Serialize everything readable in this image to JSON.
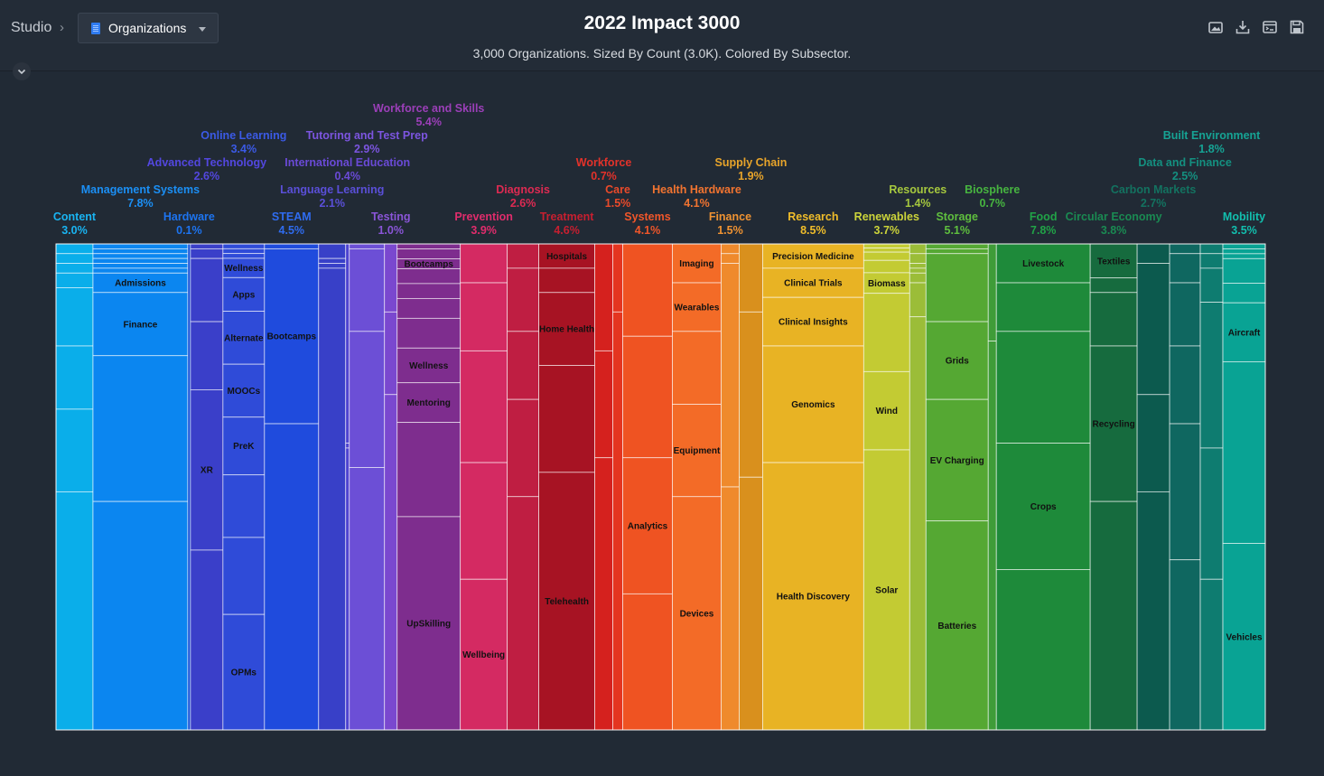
{
  "toolbar": {
    "breadcrumb": "Studio",
    "selector_label": "Organizations",
    "title": "2022 Impact 3000",
    "subtitle": "3,000 Organizations. Sized By Count (3.0K). Colored By Subsector.",
    "icons": [
      "image-export-icon",
      "download-icon",
      "embed-icon",
      "save-icon"
    ]
  },
  "chart_data": {
    "type": "treemap",
    "title": "2022 Impact 3000",
    "subtitle": "3,000 Organizations. Sized By Count (3.0K). Colored By Subsector.",
    "groups": [
      {
        "name": "Content",
        "pct": "3.0%",
        "value": 3.0,
        "color": "#0aaeea",
        "cells": [
          {
            "label": "",
            "value": 2
          },
          {
            "label": "",
            "value": 2
          },
          {
            "label": "",
            "value": 2
          },
          {
            "label": "",
            "value": 3
          },
          {
            "label": "",
            "value": 12
          },
          {
            "label": "",
            "value": 13
          },
          {
            "label": "",
            "value": 17
          },
          {
            "label": "",
            "value": 49
          }
        ]
      },
      {
        "name": "Management Systems",
        "pct": "7.8%",
        "value": 7.8,
        "color": "#0b86f0",
        "cells": [
          {
            "label": "",
            "value": 1
          },
          {
            "label": "",
            "value": 1
          },
          {
            "label": "",
            "value": 1
          },
          {
            "label": "",
            "value": 1
          },
          {
            "label": "",
            "value": 1
          },
          {
            "label": "",
            "value": 1
          },
          {
            "label": "Admissions",
            "value": 4
          },
          {
            "label": "Finance",
            "value": 13
          },
          {
            "label": "",
            "value": 30
          },
          {
            "label": "",
            "value": 47
          }
        ]
      },
      {
        "name": "Hardware",
        "pct": "0.1%",
        "value": 0.1,
        "color": "#1550d6",
        "cells": [
          {
            "label": "",
            "value": 1
          }
        ]
      },
      {
        "name": "Advanced Technology",
        "pct": "2.6%",
        "value": 2.6,
        "color": "#3a3fc9",
        "cells": [
          {
            "label": "",
            "value": 1
          },
          {
            "label": "",
            "value": 2
          },
          {
            "label": "",
            "value": 13
          },
          {
            "label": "",
            "value": 14
          },
          {
            "label": "XR",
            "value": 33
          },
          {
            "label": "",
            "value": 37
          }
        ]
      },
      {
        "name": "Online Learning",
        "pct": "3.4%",
        "value": 3.4,
        "color": "#2f4bd8",
        "cells": [
          {
            "label": "",
            "value": 1
          },
          {
            "label": "",
            "value": 1
          },
          {
            "label": "",
            "value": 1
          },
          {
            "label": "Wellness",
            "value": 4
          },
          {
            "label": "Apps",
            "value": 7
          },
          {
            "label": "Alternate",
            "value": 11
          },
          {
            "label": "MOOCs",
            "value": 11
          },
          {
            "label": "PreK",
            "value": 12
          },
          {
            "label": "",
            "value": 13
          },
          {
            "label": "",
            "value": 16
          },
          {
            "label": "OPMs",
            "value": 24
          }
        ]
      },
      {
        "name": "STEAM",
        "pct": "4.5%",
        "value": 4.5,
        "color": "#1f4bdd",
        "cells": [
          {
            "label": "",
            "value": 1
          },
          {
            "label": "Bootcamps",
            "value": 36
          },
          {
            "label": "",
            "value": 63
          }
        ]
      },
      {
        "name": "Language Learning",
        "pct": "2.1%",
        "value": 2.1,
        "color": "#3840c8",
        "cells": [
          {
            "label": "",
            "value": 3
          },
          {
            "label": "",
            "value": 1
          },
          {
            "label": "",
            "value": 1
          },
          {
            "label": "",
            "value": 95
          }
        ]
      },
      {
        "name": "International Education",
        "pct": "0.4%",
        "value": 0.4,
        "color": "#4d43d0",
        "cells": [
          {
            "label": "",
            "value": 41
          },
          {
            "label": "",
            "value": 1
          },
          {
            "label": "",
            "value": 58
          }
        ]
      },
      {
        "name": "Tutoring and Test Prep",
        "pct": "2.9%",
        "value": 2.9,
        "color": "#6c4fd6",
        "cells": [
          {
            "label": "",
            "value": 1
          },
          {
            "label": "",
            "value": 17
          },
          {
            "label": "",
            "value": 28
          },
          {
            "label": "",
            "value": 54
          }
        ]
      },
      {
        "name": "Testing",
        "pct": "1.0%",
        "value": 1.0,
        "color": "#7a48cf",
        "cells": [
          {
            "label": "",
            "value": 14
          },
          {
            "label": "",
            "value": 17
          },
          {
            "label": "",
            "value": 69
          }
        ]
      },
      {
        "name": "Workforce and Skills",
        "pct": "5.4%",
        "value": 5.4,
        "color": "#7e2d8e",
        "cells": [
          {
            "label": "",
            "value": 1
          },
          {
            "label": "",
            "value": 2
          },
          {
            "label": "Bootcamps",
            "value": 2
          },
          {
            "label": "",
            "value": 3
          },
          {
            "label": "",
            "value": 3
          },
          {
            "label": "",
            "value": 4
          },
          {
            "label": "",
            "value": 6
          },
          {
            "label": "Wellness",
            "value": 7
          },
          {
            "label": "Mentoring",
            "value": 8
          },
          {
            "label": "",
            "value": 19
          },
          {
            "label": "UpSkilling",
            "value": 43
          }
        ]
      },
      {
        "name": "Prevention",
        "pct": "3.9%",
        "value": 3.9,
        "color": "#d42a62",
        "cells": [
          {
            "label": "",
            "value": 8
          },
          {
            "label": "",
            "value": 14
          },
          {
            "label": "",
            "value": 23
          },
          {
            "label": "",
            "value": 24
          },
          {
            "label": "Wellbeing",
            "value": 31
          }
        ]
      },
      {
        "name": "Diagnosis",
        "pct": "2.6%",
        "value": 2.6,
        "color": "#bf1e42",
        "cells": [
          {
            "label": "",
            "value": 5
          },
          {
            "label": "",
            "value": 13
          },
          {
            "label": "",
            "value": 14
          },
          {
            "label": "",
            "value": 20
          },
          {
            "label": "",
            "value": 48
          }
        ]
      },
      {
        "name": "Treatment",
        "pct": "4.6%",
        "value": 4.6,
        "color": "#a71323",
        "cells": [
          {
            "label": "Hospitals",
            "value": 5
          },
          {
            "label": "",
            "value": 5
          },
          {
            "label": "Home Health",
            "value": 15
          },
          {
            "label": "",
            "value": 22
          },
          {
            "label": "Telehealth",
            "value": 53
          }
        ]
      },
      {
        "name": "Workforce",
        "pct": "0.7%",
        "value": 0.7,
        "color": "#d5211e",
        "cells": [
          {
            "label": "",
            "value": 22
          },
          {
            "label": "",
            "value": 22
          },
          {
            "label": "",
            "value": 56
          }
        ]
      },
      {
        "name": "Care",
        "pct": "1.5%",
        "value": 1.5,
        "color": "#e43520",
        "cells": [
          {
            "label": "",
            "value": 14
          },
          {
            "label": "",
            "value": 86
          }
        ]
      },
      {
        "name": "Systems",
        "pct": "4.1%",
        "value": 4.1,
        "color": "#ef5322",
        "cells": [
          {
            "label": "",
            "value": 19
          },
          {
            "label": "",
            "value": 25
          },
          {
            "label": "Analytics",
            "value": 28
          },
          {
            "label": "",
            "value": 28
          }
        ]
      },
      {
        "name": "Health Hardware",
        "pct": "4.1%",
        "value": 4.1,
        "color": "#f36b27",
        "cells": [
          {
            "label": "Imaging",
            "value": 8
          },
          {
            "label": "Wearables",
            "value": 10
          },
          {
            "label": "",
            "value": 15
          },
          {
            "label": "Equipment",
            "value": 19
          },
          {
            "label": "Devices",
            "value": 48
          }
        ]
      },
      {
        "name": "Finance",
        "pct": "1.5%",
        "value": 1.5,
        "color": "#ef8a2c",
        "cells": [
          {
            "label": "",
            "value": 2
          },
          {
            "label": "",
            "value": 2
          },
          {
            "label": "",
            "value": 46
          },
          {
            "label": "",
            "value": 50
          }
        ]
      },
      {
        "name": "Supply Chain",
        "pct": "1.9%",
        "value": 1.9,
        "color": "#d9901d",
        "cells": [
          {
            "label": "",
            "value": 14
          },
          {
            "label": "",
            "value": 34
          },
          {
            "label": "",
            "value": 52
          }
        ]
      },
      {
        "name": "Research",
        "pct": "8.5%",
        "value": 8.5,
        "color": "#e8b324",
        "cells": [
          {
            "label": "Precision Medicine",
            "value": 5
          },
          {
            "label": "Clinical Trials",
            "value": 6
          },
          {
            "label": "Clinical Insights",
            "value": 10
          },
          {
            "label": "Genomics",
            "value": 24
          },
          {
            "label": "Health Discovery",
            "value": 55
          }
        ]
      },
      {
        "name": "Renewables",
        "pct": "3.7%",
        "value": 3.7,
        "color": "#c3cb33",
        "cells": [
          {
            "label": "",
            "value": 1
          },
          {
            "label": "",
            "value": 1
          },
          {
            "label": "",
            "value": 2
          },
          {
            "label": "",
            "value": 3
          },
          {
            "label": "Biomass",
            "value": 5
          },
          {
            "label": "",
            "value": 19
          },
          {
            "label": "Wind",
            "value": 19
          },
          {
            "label": "Solar",
            "value": 68
          }
        ]
      },
      {
        "name": "Resources",
        "pct": "1.4%",
        "value": 1.4,
        "color": "#9bbd38",
        "cells": [
          {
            "label": "",
            "value": 2
          },
          {
            "label": "",
            "value": 2
          },
          {
            "label": "",
            "value": 1
          },
          {
            "label": "",
            "value": 1
          },
          {
            "label": "",
            "value": 2
          },
          {
            "label": "",
            "value": 7
          },
          {
            "label": "",
            "value": 85
          }
        ]
      },
      {
        "name": "Storage",
        "pct": "5.1%",
        "value": 5.1,
        "color": "#55a833",
        "cells": [
          {
            "label": "",
            "value": 1
          },
          {
            "label": "",
            "value": 1
          },
          {
            "label": "",
            "value": 14
          },
          {
            "label": "Grids",
            "value": 16
          },
          {
            "label": "EV Charging",
            "value": 25
          },
          {
            "label": "Batteries",
            "value": 43
          }
        ]
      },
      {
        "name": "Biosphere",
        "pct": "0.7%",
        "value": 0.7,
        "color": "#3f9c38",
        "cells": [
          {
            "label": "",
            "value": 20
          },
          {
            "label": "",
            "value": 80
          }
        ]
      },
      {
        "name": "Food",
        "pct": "7.8%",
        "value": 7.8,
        "color": "#1e8a3a",
        "cells": [
          {
            "label": "Livestock",
            "value": 8
          },
          {
            "label": "",
            "value": 10
          },
          {
            "label": "",
            "value": 23
          },
          {
            "label": "Crops",
            "value": 26
          },
          {
            "label": "",
            "value": 33
          }
        ]
      },
      {
        "name": "Circular Economy",
        "pct": "3.8%",
        "value": 3.8,
        "color": "#166b3e",
        "cells": [
          {
            "label": "Textiles",
            "value": 7
          },
          {
            "label": "",
            "value": 3
          },
          {
            "label": "",
            "value": 11
          },
          {
            "label": "Recycling",
            "value": 32
          },
          {
            "label": "",
            "value": 47
          }
        ]
      },
      {
        "name": "Carbon Markets",
        "pct": "2.7%",
        "value": 2.7,
        "color": "#0c5a4e",
        "cells": [
          {
            "label": "",
            "value": 4
          },
          {
            "label": "",
            "value": 27
          },
          {
            "label": "",
            "value": 20
          },
          {
            "label": "",
            "value": 49
          }
        ]
      },
      {
        "name": "Data and Finance",
        "pct": "2.5%",
        "value": 2.5,
        "color": "#0f6760",
        "cells": [
          {
            "label": "",
            "value": 2
          },
          {
            "label": "",
            "value": 6
          },
          {
            "label": "",
            "value": 13
          },
          {
            "label": "",
            "value": 16
          },
          {
            "label": "",
            "value": 28
          },
          {
            "label": "",
            "value": 35
          }
        ]
      },
      {
        "name": "Built Environment",
        "pct": "1.8%",
        "value": 1.8,
        "color": "#0e7c70",
        "cells": [
          {
            "label": "",
            "value": 2
          },
          {
            "label": "",
            "value": 3
          },
          {
            "label": "",
            "value": 7
          },
          {
            "label": "",
            "value": 30
          },
          {
            "label": "",
            "value": 27
          },
          {
            "label": "",
            "value": 31
          }
        ]
      },
      {
        "name": "Mobility",
        "pct": "3.5%",
        "value": 3.5,
        "color": "#09a394",
        "cells": [
          {
            "label": "",
            "value": 1
          },
          {
            "label": "",
            "value": 1
          },
          {
            "label": "",
            "value": 1
          },
          {
            "label": "",
            "value": 5
          },
          {
            "label": "",
            "value": 4
          },
          {
            "label": "Aircraft",
            "value": 12
          },
          {
            "label": "",
            "value": 37
          },
          {
            "label": "Vehicles",
            "value": 38
          }
        ]
      }
    ]
  }
}
